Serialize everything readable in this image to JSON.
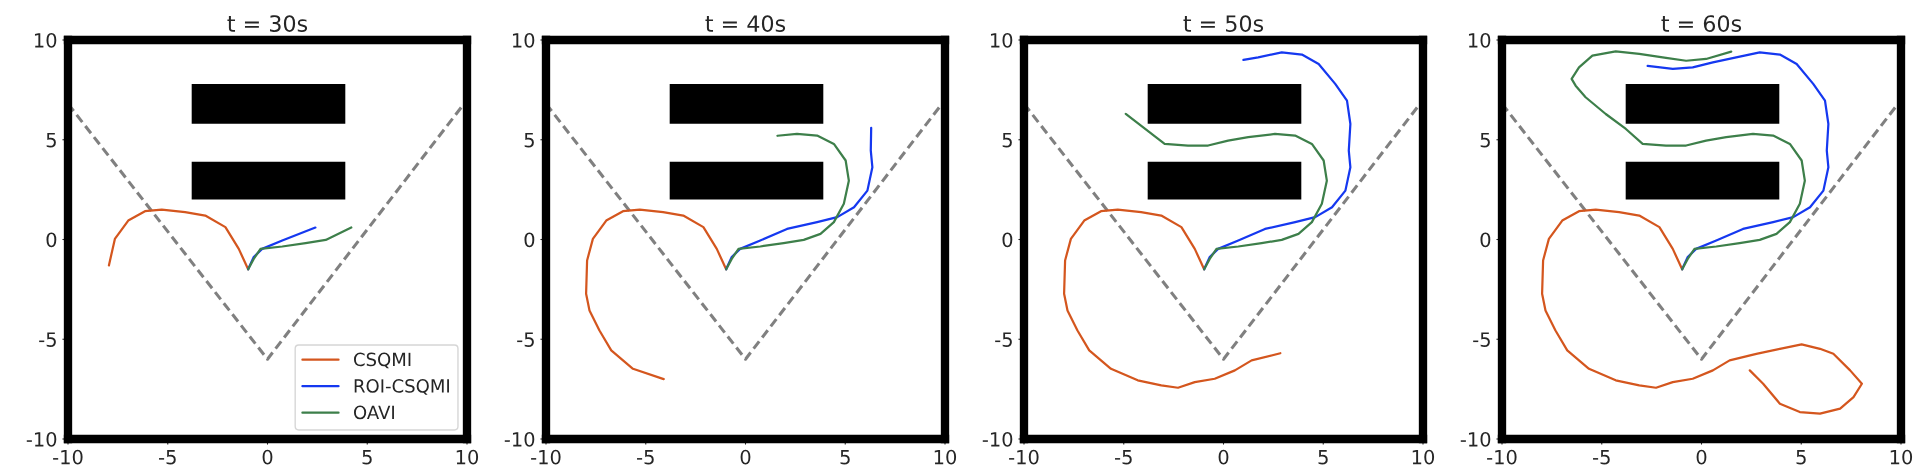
{
  "chart_data": [
    {
      "type": "line",
      "title": "t = 30s",
      "xlim": [
        -10,
        10
      ],
      "ylim": [
        -10,
        10
      ],
      "xticks": [
        -10,
        -5,
        0,
        5,
        10
      ],
      "yticks": [
        -10,
        -5,
        0,
        5,
        10
      ],
      "grid": false,
      "legend": "bottom right",
      "series": [
        {
          "type": "area",
          "color": "#000000",
          "x": [
            -3.8,
            3.9,
            3.9,
            -3.8,
            null,
            -3.8,
            3.9,
            3.9,
            -3.8
          ],
          "values": [
            5.8,
            5.8,
            7.8,
            7.8,
            null,
            2.0,
            2.0,
            3.9,
            3.9
          ]
        },
        {
          "type": "line",
          "color": "#808080",
          "line_style": "dashed",
          "x": [
            -10,
            0,
            10
          ],
          "values": [
            6.8,
            -6,
            7.0
          ]
        },
        {
          "name": "CSQMI",
          "color": "#d4561e",
          "x": [
            -0.97,
            -1.44,
            -2.11,
            -3.12,
            -4.13,
            -5.3,
            -6.14,
            -6.98,
            -7.65,
            -7.95
          ],
          "values": [
            -1.49,
            -0.47,
            0.62,
            1.2,
            1.37,
            1.5,
            1.42,
            0.95,
            0.03,
            -1.3
          ]
        },
        {
          "name": "ROI-CSQMI",
          "color": "#1538f0",
          "x": [
            -0.97,
            -0.69,
            -0.27,
            0.74,
            2.4
          ],
          "values": [
            -1.49,
            -0.88,
            -0.47,
            -0.05,
            0.6
          ]
        },
        {
          "name": "OAVI",
          "color": "#3d7f4a",
          "x": [
            -0.97,
            -0.69,
            -0.35,
            0.74,
            1.91,
            2.92,
            4.2
          ],
          "values": [
            -1.49,
            -0.97,
            -0.47,
            -0.35,
            -0.18,
            -0.02,
            0.6
          ]
        }
      ]
    },
    {
      "type": "line",
      "title": "t = 40s",
      "xlim": [
        -10,
        10
      ],
      "ylim": [
        -10,
        10
      ],
      "xticks": [
        -10,
        -5,
        0,
        5,
        10
      ],
      "yticks": [
        -10,
        -5,
        0,
        5,
        10
      ],
      "grid": false,
      "series": [
        {
          "type": "area",
          "color": "#000000",
          "x": [
            -3.8,
            3.9,
            3.9,
            -3.8,
            null,
            -3.8,
            3.9,
            3.9,
            -3.8
          ],
          "values": [
            5.8,
            5.8,
            7.8,
            7.8,
            null,
            2.0,
            2.0,
            3.9,
            3.9
          ]
        },
        {
          "type": "line",
          "color": "#808080",
          "line_style": "dashed",
          "x": [
            -10,
            0,
            10
          ],
          "values": [
            6.8,
            -6,
            7.0
          ]
        },
        {
          "color": "#d4561e",
          "x": [
            -0.97,
            -1.44,
            -2.11,
            -3.12,
            -4.13,
            -5.3,
            -6.14,
            -6.98,
            -7.65,
            -7.94,
            -7.99,
            -7.82,
            -7.32,
            -6.73,
            -5.64,
            -4.1
          ],
          "values": [
            -1.49,
            -0.47,
            0.62,
            1.2,
            1.37,
            1.5,
            1.42,
            0.95,
            0.03,
            -1.05,
            -2.72,
            -3.56,
            -4.56,
            -5.56,
            -6.48,
            -7.0
          ]
        },
        {
          "color": "#1538f0",
          "x": [
            -0.97,
            -0.69,
            -0.27,
            0.74,
            2.08,
            3.59,
            4.6,
            5.44,
            6.11,
            6.36,
            6.28,
            6.3
          ],
          "values": [
            -1.49,
            -0.88,
            -0.47,
            -0.05,
            0.53,
            0.87,
            1.12,
            1.62,
            2.45,
            3.62,
            4.46,
            5.6
          ]
        },
        {
          "color": "#3d7f4a",
          "x": [
            -0.97,
            -0.69,
            -0.35,
            0.74,
            1.91,
            2.92,
            3.76,
            4.43,
            4.93,
            5.18,
            5.02,
            4.43,
            3.59,
            2.58,
            1.6
          ],
          "values": [
            -1.49,
            -0.97,
            -0.47,
            -0.35,
            -0.18,
            -0.02,
            0.28,
            0.87,
            1.79,
            2.95,
            3.96,
            4.79,
            5.21,
            5.29,
            5.2
          ]
        }
      ]
    },
    {
      "type": "line",
      "title": "t = 50s",
      "xlim": [
        -10,
        10
      ],
      "ylim": [
        -10,
        10
      ],
      "xticks": [
        -10,
        -5,
        0,
        5,
        10
      ],
      "yticks": [
        -10,
        -5,
        0,
        5,
        10
      ],
      "grid": false,
      "series": [
        {
          "type": "area",
          "color": "#000000",
          "x": [
            -3.8,
            3.9,
            3.9,
            -3.8,
            null,
            -3.8,
            3.9,
            3.9,
            -3.8
          ],
          "values": [
            5.8,
            5.8,
            7.8,
            7.8,
            null,
            2.0,
            2.0,
            3.9,
            3.9
          ]
        },
        {
          "type": "line",
          "color": "#808080",
          "line_style": "dashed",
          "x": [
            -10,
            0,
            10
          ],
          "values": [
            6.8,
            -6,
            7.0
          ]
        },
        {
          "color": "#d4561e",
          "x": [
            -0.97,
            -1.44,
            -2.11,
            -3.12,
            -4.13,
            -5.3,
            -6.14,
            -6.98,
            -7.65,
            -7.94,
            -7.99,
            -7.82,
            -7.32,
            -6.73,
            -5.64,
            -4.3,
            -3.12,
            -2.28,
            -1.44,
            -0.44,
            0.57,
            1.41,
            2.85
          ],
          "values": [
            -1.49,
            -0.47,
            0.62,
            1.2,
            1.37,
            1.5,
            1.42,
            0.95,
            0.03,
            -1.05,
            -2.72,
            -3.56,
            -4.56,
            -5.56,
            -6.48,
            -7.06,
            -7.31,
            -7.43,
            -7.15,
            -6.98,
            -6.56,
            -6.06,
            -5.7
          ]
        },
        {
          "color": "#1538f0",
          "x": [
            -0.97,
            -0.69,
            -0.27,
            0.74,
            2.08,
            3.59,
            4.6,
            5.44,
            6.11,
            6.36,
            6.28,
            6.36,
            6.19,
            5.6,
            4.77,
            3.93,
            2.92,
            1.74,
            1.0
          ],
          "values": [
            -1.49,
            -0.88,
            -0.47,
            -0.05,
            0.53,
            0.87,
            1.12,
            1.62,
            2.45,
            3.62,
            4.46,
            5.79,
            6.96,
            7.8,
            8.8,
            9.27,
            9.38,
            9.13,
            9.0
          ]
        },
        {
          "color": "#3d7f4a",
          "x": [
            -0.97,
            -0.69,
            -0.35,
            0.74,
            1.91,
            2.92,
            3.76,
            4.43,
            4.93,
            5.18,
            5.02,
            4.43,
            3.59,
            2.58,
            1.24,
            0.23,
            -0.77,
            -1.78,
            -2.95,
            -4.9
          ],
          "values": [
            -1.49,
            -0.97,
            -0.47,
            -0.35,
            -0.18,
            -0.02,
            0.28,
            0.87,
            1.79,
            2.95,
            3.96,
            4.79,
            5.21,
            5.29,
            5.13,
            4.96,
            4.71,
            4.71,
            4.79,
            6.3
          ]
        }
      ]
    },
    {
      "type": "line",
      "title": "t = 60s",
      "xlim": [
        -10,
        10
      ],
      "ylim": [
        -10,
        10
      ],
      "xticks": [
        -10,
        -5,
        0,
        5,
        10
      ],
      "yticks": [
        -10,
        -5,
        0,
        5,
        10
      ],
      "grid": false,
      "series": [
        {
          "type": "area",
          "color": "#000000",
          "x": [
            -3.8,
            3.9,
            3.9,
            -3.8,
            null,
            -3.8,
            3.9,
            3.9,
            -3.8
          ],
          "values": [
            5.8,
            5.8,
            7.8,
            7.8,
            null,
            2.0,
            2.0,
            3.9,
            3.9
          ]
        },
        {
          "type": "line",
          "color": "#808080",
          "line_style": "dashed",
          "x": [
            -10,
            0,
            10
          ],
          "values": [
            6.8,
            -6,
            7.0
          ]
        },
        {
          "color": "#d4561e",
          "x": [
            -0.97,
            -1.44,
            -2.11,
            -3.12,
            -4.13,
            -5.3,
            -6.14,
            -6.98,
            -7.65,
            -7.94,
            -7.99,
            -7.82,
            -7.32,
            -6.73,
            -5.64,
            -4.3,
            -3.12,
            -2.28,
            -1.44,
            -0.44,
            0.57,
            1.41,
            2.75,
            3.93,
            5.02,
            5.94,
            6.61,
            7.45,
            8.04,
            7.62,
            6.95,
            5.94,
            4.93,
            3.93,
            3.09,
            2.42
          ],
          "values": [
            -1.49,
            -0.47,
            0.62,
            1.2,
            1.37,
            1.5,
            1.42,
            0.95,
            0.03,
            -1.05,
            -2.72,
            -3.56,
            -4.56,
            -5.56,
            -6.48,
            -7.06,
            -7.31,
            -7.43,
            -7.15,
            -6.98,
            -6.56,
            -6.06,
            -5.73,
            -5.48,
            -5.26,
            -5.48,
            -5.73,
            -6.56,
            -7.23,
            -7.9,
            -8.48,
            -8.73,
            -8.65,
            -8.23,
            -7.23,
            -6.56
          ]
        },
        {
          "color": "#1538f0",
          "x": [
            -0.97,
            -0.69,
            -0.27,
            0.74,
            2.08,
            3.59,
            4.6,
            5.44,
            6.11,
            6.36,
            6.28,
            6.36,
            6.19,
            5.6,
            4.77,
            3.93,
            2.92,
            1.74,
            0.57,
            -0.44,
            -1.44,
            -2.7
          ],
          "values": [
            -1.49,
            -0.88,
            -0.47,
            -0.05,
            0.53,
            0.87,
            1.12,
            1.62,
            2.45,
            3.62,
            4.46,
            5.79,
            6.96,
            7.8,
            8.8,
            9.27,
            9.38,
            9.13,
            8.88,
            8.63,
            8.55,
            8.7
          ]
        },
        {
          "color": "#3d7f4a",
          "x": [
            -0.97,
            -0.69,
            -0.35,
            0.74,
            1.91,
            2.92,
            3.76,
            4.43,
            4.93,
            5.18,
            5.02,
            4.43,
            3.59,
            2.58,
            1.24,
            0.23,
            -0.77,
            -1.78,
            -2.95,
            -3.79,
            -4.8,
            -5.81,
            -6.31,
            -6.51,
            -6.14,
            -5.47,
            -4.3,
            -3.12,
            -1.78,
            -0.77,
            0.23,
            1.49
          ],
          "values": [
            -1.49,
            -0.97,
            -0.47,
            -0.35,
            -0.18,
            -0.02,
            0.28,
            0.87,
            1.79,
            2.95,
            3.96,
            4.79,
            5.21,
            5.29,
            5.13,
            4.96,
            4.71,
            4.71,
            4.79,
            5.54,
            6.29,
            7.13,
            7.71,
            8.05,
            8.63,
            9.22,
            9.43,
            9.3,
            9.1,
            8.96,
            9.05,
            9.42
          ]
        }
      ]
    }
  ]
}
